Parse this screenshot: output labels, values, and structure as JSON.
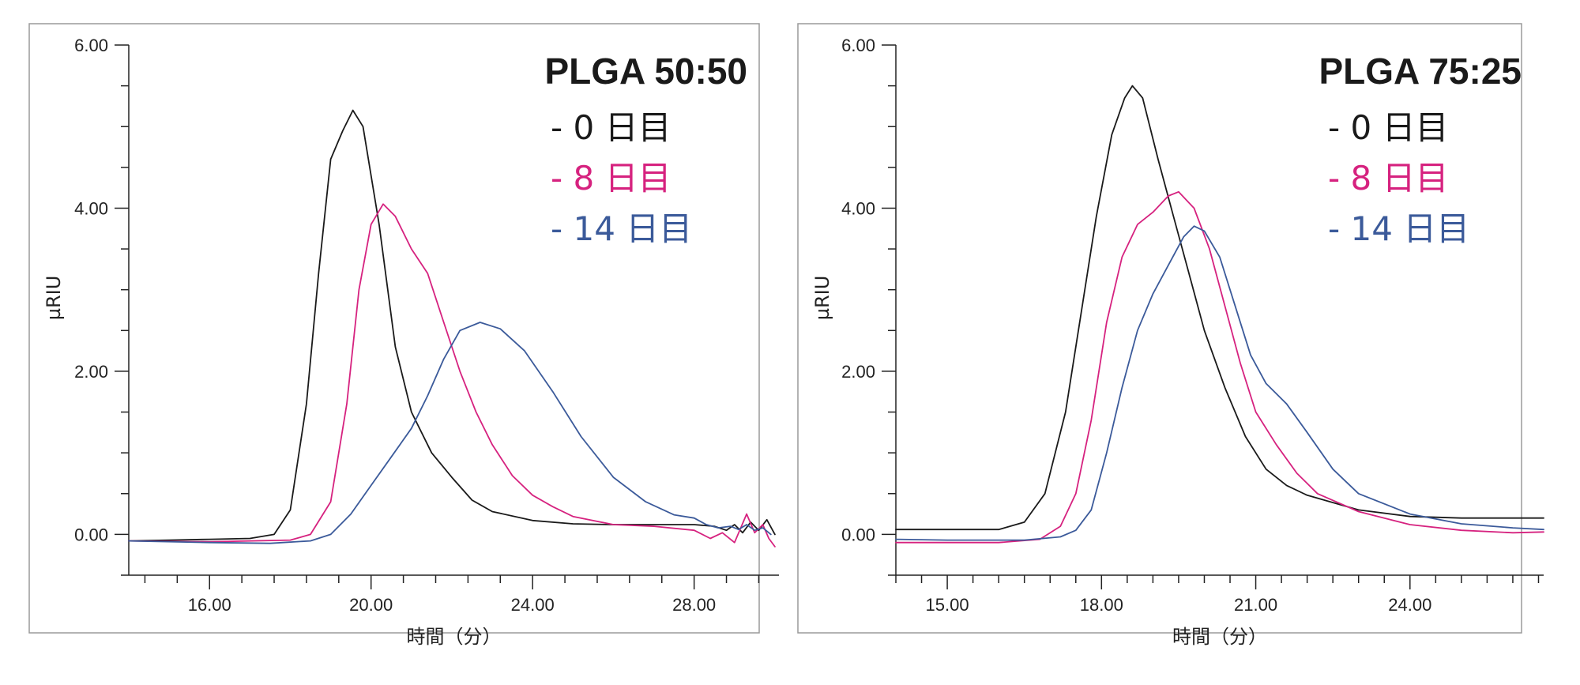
{
  "chart_data": [
    {
      "type": "line",
      "title": "PLGA 50:50",
      "xlabel": "時間（分）",
      "ylabel": "µRIU",
      "xlim": [
        14.0,
        30.1
      ],
      "ylim": [
        -0.5,
        6.0
      ],
      "xticks": [
        16.0,
        20.0,
        24.0,
        28.0
      ],
      "xtick_labels": [
        "16.00",
        "20.00",
        "24.00",
        "28.00"
      ],
      "xminor_step": 0.8,
      "yticks": [
        0.0,
        2.0,
        4.0,
        6.0
      ],
      "ytick_labels": [
        "0.00",
        "2.00",
        "4.00",
        "6.00"
      ],
      "yminor_step": 0.5,
      "legend_position": "top-right",
      "series": [
        {
          "name": "- 0 日目",
          "color": "#1a1a1a",
          "points": [
            [
              14.0,
              -0.08
            ],
            [
              15.0,
              -0.07
            ],
            [
              16.0,
              -0.06
            ],
            [
              17.0,
              -0.05
            ],
            [
              17.6,
              0.0
            ],
            [
              18.0,
              0.3
            ],
            [
              18.4,
              1.6
            ],
            [
              18.7,
              3.2
            ],
            [
              19.0,
              4.6
            ],
            [
              19.3,
              4.95
            ],
            [
              19.55,
              5.2
            ],
            [
              19.8,
              5.0
            ],
            [
              20.2,
              3.8
            ],
            [
              20.6,
              2.3
            ],
            [
              21.0,
              1.5
            ],
            [
              21.5,
              1.0
            ],
            [
              22.0,
              0.7
            ],
            [
              22.5,
              0.42
            ],
            [
              23.0,
              0.28
            ],
            [
              24.0,
              0.17
            ],
            [
              25.0,
              0.13
            ],
            [
              26.0,
              0.12
            ],
            [
              27.0,
              0.12
            ],
            [
              28.0,
              0.12
            ],
            [
              28.5,
              0.1
            ],
            [
              28.8,
              0.05
            ],
            [
              29.0,
              0.12
            ],
            [
              29.2,
              0.02
            ],
            [
              29.4,
              0.15
            ],
            [
              29.6,
              0.05
            ],
            [
              29.8,
              0.18
            ],
            [
              30.0,
              0.0
            ]
          ]
        },
        {
          "name": "- 8 日目",
          "color": "#d6227f",
          "points": [
            [
              14.0,
              -0.08
            ],
            [
              16.0,
              -0.09
            ],
            [
              18.0,
              -0.07
            ],
            [
              18.5,
              0.0
            ],
            [
              19.0,
              0.4
            ],
            [
              19.4,
              1.6
            ],
            [
              19.7,
              3.0
            ],
            [
              20.0,
              3.8
            ],
            [
              20.3,
              4.05
            ],
            [
              20.6,
              3.9
            ],
            [
              21.0,
              3.5
            ],
            [
              21.4,
              3.2
            ],
            [
              21.8,
              2.6
            ],
            [
              22.2,
              2.0
            ],
            [
              22.6,
              1.5
            ],
            [
              23.0,
              1.1
            ],
            [
              23.5,
              0.72
            ],
            [
              24.0,
              0.48
            ],
            [
              24.5,
              0.34
            ],
            [
              25.0,
              0.22
            ],
            [
              26.0,
              0.12
            ],
            [
              27.0,
              0.1
            ],
            [
              28.0,
              0.05
            ],
            [
              28.4,
              -0.05
            ],
            [
              28.7,
              0.02
            ],
            [
              29.0,
              -0.1
            ],
            [
              29.3,
              0.25
            ],
            [
              29.5,
              0.02
            ],
            [
              29.7,
              0.12
            ],
            [
              29.85,
              -0.05
            ],
            [
              30.0,
              -0.15
            ]
          ]
        },
        {
          "name": "- 14 日目",
          "color": "#3b5a9a",
          "points": [
            [
              14.0,
              -0.08
            ],
            [
              16.0,
              -0.1
            ],
            [
              17.5,
              -0.11
            ],
            [
              18.5,
              -0.08
            ],
            [
              19.0,
              0.0
            ],
            [
              19.5,
              0.25
            ],
            [
              20.0,
              0.6
            ],
            [
              20.5,
              0.95
            ],
            [
              21.0,
              1.3
            ],
            [
              21.4,
              1.7
            ],
            [
              21.8,
              2.15
            ],
            [
              22.2,
              2.5
            ],
            [
              22.7,
              2.6
            ],
            [
              23.2,
              2.52
            ],
            [
              23.8,
              2.25
            ],
            [
              24.5,
              1.75
            ],
            [
              25.2,
              1.2
            ],
            [
              26.0,
              0.7
            ],
            [
              26.8,
              0.4
            ],
            [
              27.5,
              0.24
            ],
            [
              28.0,
              0.2
            ],
            [
              28.3,
              0.12
            ],
            [
              28.6,
              0.08
            ],
            [
              28.9,
              0.1
            ],
            [
              29.1,
              0.06
            ],
            [
              29.3,
              0.12
            ],
            [
              29.5,
              0.05
            ],
            [
              29.7,
              0.08
            ],
            [
              29.9,
              0.0
            ]
          ]
        }
      ]
    },
    {
      "type": "line",
      "title": "PLGA 75:25",
      "xlabel": "時間（分）",
      "ylabel": "µRIU",
      "xlim": [
        14.0,
        26.6
      ],
      "ylim": [
        -0.5,
        6.0
      ],
      "xticks": [
        15.0,
        18.0,
        21.0,
        24.0
      ],
      "xtick_labels": [
        "15.00",
        "18.00",
        "21.00",
        "24.00"
      ],
      "xminor_step": 0.5,
      "yticks": [
        0.0,
        2.0,
        4.0,
        6.0
      ],
      "ytick_labels": [
        "0.00",
        "2.00",
        "4.00",
        "6.00"
      ],
      "yminor_step": 0.5,
      "legend_position": "top-right",
      "series": [
        {
          "name": "- 0 日目",
          "color": "#1a1a1a",
          "points": [
            [
              14.0,
              0.06
            ],
            [
              15.0,
              0.06
            ],
            [
              16.0,
              0.06
            ],
            [
              16.5,
              0.15
            ],
            [
              16.9,
              0.5
            ],
            [
              17.3,
              1.5
            ],
            [
              17.6,
              2.7
            ],
            [
              17.9,
              3.9
            ],
            [
              18.2,
              4.9
            ],
            [
              18.45,
              5.35
            ],
            [
              18.6,
              5.5
            ],
            [
              18.8,
              5.35
            ],
            [
              19.1,
              4.6
            ],
            [
              19.4,
              3.9
            ],
            [
              19.7,
              3.2
            ],
            [
              20.0,
              2.5
            ],
            [
              20.4,
              1.8
            ],
            [
              20.8,
              1.2
            ],
            [
              21.2,
              0.8
            ],
            [
              21.6,
              0.6
            ],
            [
              22.0,
              0.48
            ],
            [
              23.0,
              0.3
            ],
            [
              24.0,
              0.22
            ],
            [
              25.0,
              0.2
            ],
            [
              26.0,
              0.2
            ],
            [
              26.6,
              0.2
            ]
          ]
        },
        {
          "name": "- 8 日目",
          "color": "#d6227f",
          "points": [
            [
              14.0,
              -0.1
            ],
            [
              15.0,
              -0.1
            ],
            [
              16.0,
              -0.1
            ],
            [
              16.8,
              -0.06
            ],
            [
              17.2,
              0.1
            ],
            [
              17.5,
              0.5
            ],
            [
              17.8,
              1.4
            ],
            [
              18.1,
              2.6
            ],
            [
              18.4,
              3.4
            ],
            [
              18.7,
              3.8
            ],
            [
              19.0,
              3.95
            ],
            [
              19.3,
              4.15
            ],
            [
              19.5,
              4.2
            ],
            [
              19.8,
              4.0
            ],
            [
              20.1,
              3.5
            ],
            [
              20.4,
              2.8
            ],
            [
              20.7,
              2.1
            ],
            [
              21.0,
              1.5
            ],
            [
              21.4,
              1.1
            ],
            [
              21.8,
              0.75
            ],
            [
              22.2,
              0.5
            ],
            [
              23.0,
              0.28
            ],
            [
              24.0,
              0.12
            ],
            [
              25.0,
              0.05
            ],
            [
              26.0,
              0.02
            ],
            [
              26.6,
              0.03
            ]
          ]
        },
        {
          "name": "- 14 日目",
          "color": "#3b5a9a",
          "points": [
            [
              14.0,
              -0.06
            ],
            [
              15.0,
              -0.07
            ],
            [
              16.5,
              -0.07
            ],
            [
              17.2,
              -0.03
            ],
            [
              17.5,
              0.05
            ],
            [
              17.8,
              0.3
            ],
            [
              18.1,
              1.0
            ],
            [
              18.4,
              1.8
            ],
            [
              18.7,
              2.5
            ],
            [
              19.0,
              2.95
            ],
            [
              19.3,
              3.3
            ],
            [
              19.6,
              3.65
            ],
            [
              19.8,
              3.78
            ],
            [
              20.0,
              3.72
            ],
            [
              20.3,
              3.4
            ],
            [
              20.6,
              2.8
            ],
            [
              20.9,
              2.2
            ],
            [
              21.2,
              1.85
            ],
            [
              21.6,
              1.6
            ],
            [
              22.0,
              1.25
            ],
            [
              22.5,
              0.8
            ],
            [
              23.0,
              0.5
            ],
            [
              24.0,
              0.25
            ],
            [
              25.0,
              0.13
            ],
            [
              26.0,
              0.08
            ],
            [
              26.6,
              0.06
            ]
          ]
        }
      ]
    }
  ]
}
